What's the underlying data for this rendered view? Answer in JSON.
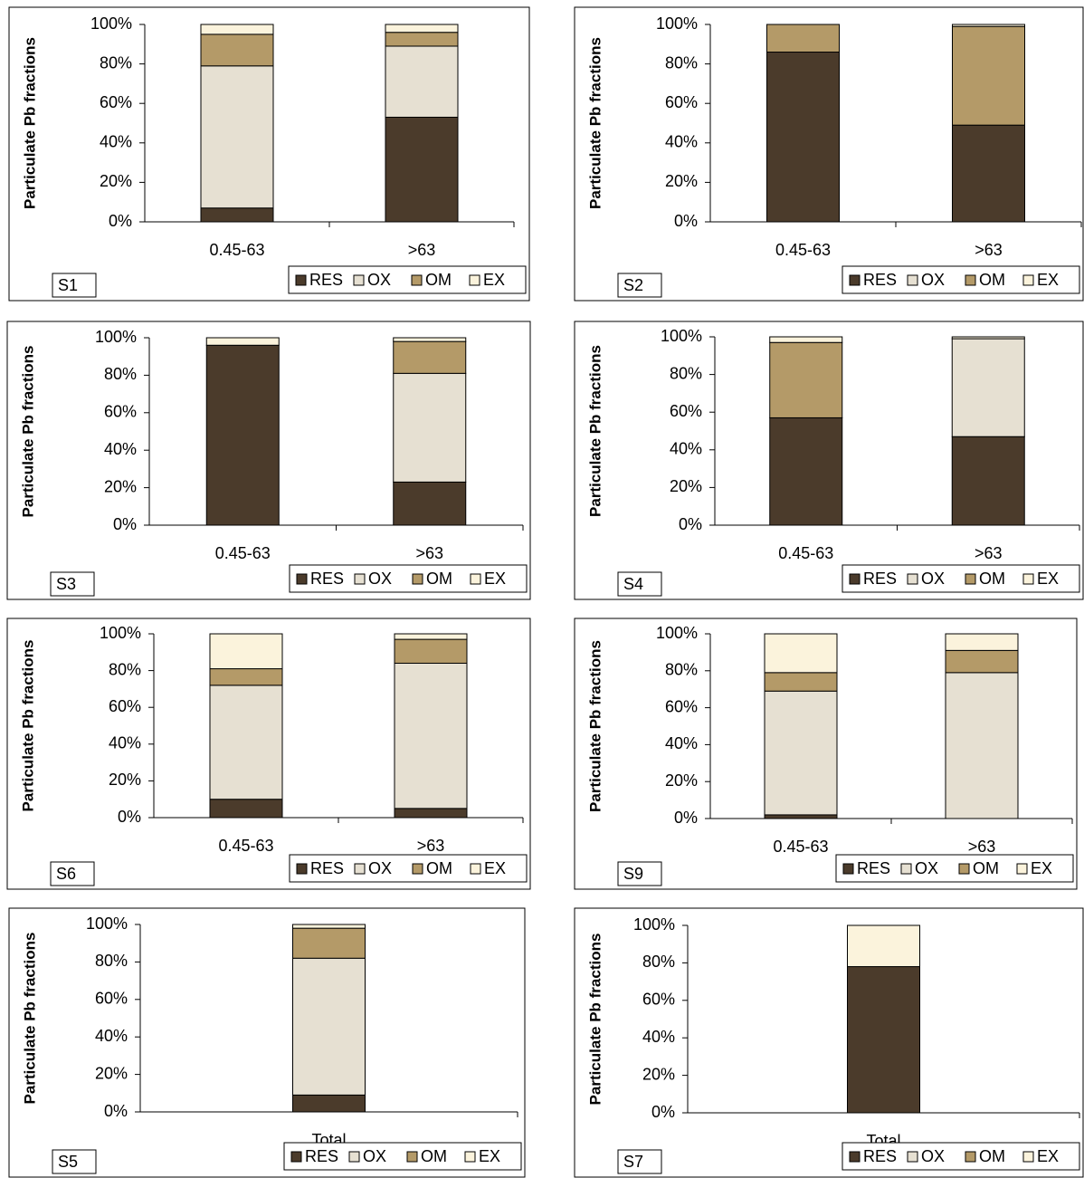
{
  "chart_data": [
    {
      "type": "bar",
      "stacked": true,
      "title": "S1",
      "ylabel": "Particulate Pb fractions",
      "categories": [
        "0.45-63",
        ">63"
      ],
      "series": [
        {
          "name": "RES",
          "color": "#4b3b2b",
          "values": [
            7,
            53
          ]
        },
        {
          "name": "OX",
          "color": "#e6e0d2",
          "values": [
            72,
            36
          ]
        },
        {
          "name": "OM",
          "color": "#b49a68",
          "values": [
            16,
            7
          ]
        },
        {
          "name": "EX",
          "color": "#fbf3dc",
          "values": [
            5,
            4
          ]
        }
      ],
      "ylim": [
        0,
        100
      ],
      "yticks": [
        {
          "value": 0,
          "label": "0%"
        },
        {
          "value": 20,
          "label": "20%"
        },
        {
          "value": 40,
          "label": "40%"
        },
        {
          "value": 60,
          "label": "60%"
        },
        {
          "value": 80,
          "label": "80%"
        },
        {
          "value": 100,
          "label": "100%"
        }
      ],
      "legend": "bottom-right"
    },
    {
      "type": "bar",
      "stacked": true,
      "title": "S2",
      "ylabel": "Particulate Pb fractions",
      "categories": [
        "0.45-63",
        ">63"
      ],
      "series": [
        {
          "name": "RES",
          "color": "#4b3b2b",
          "values": [
            86,
            49
          ]
        },
        {
          "name": "OX",
          "color": "#e6e0d2",
          "values": [
            0,
            0
          ]
        },
        {
          "name": "OM",
          "color": "#b49a68",
          "values": [
            14,
            50
          ]
        },
        {
          "name": "EX",
          "color": "#fbf3dc",
          "values": [
            0,
            1
          ]
        }
      ],
      "ylim": [
        0,
        100
      ],
      "yticks": [
        {
          "value": 0,
          "label": "0%"
        },
        {
          "value": 20,
          "label": "20%"
        },
        {
          "value": 40,
          "label": "40%"
        },
        {
          "value": 60,
          "label": "60%"
        },
        {
          "value": 80,
          "label": "80%"
        },
        {
          "value": 100,
          "label": "100%"
        }
      ],
      "legend": "bottom-right"
    },
    {
      "type": "bar",
      "stacked": true,
      "title": "S3",
      "ylabel": "Particulate Pb fractions",
      "categories": [
        "0.45-63",
        ">63"
      ],
      "series": [
        {
          "name": "RES",
          "color": "#4b3b2b",
          "values": [
            96,
            23
          ]
        },
        {
          "name": "OX",
          "color": "#e6e0d2",
          "values": [
            0,
            58
          ]
        },
        {
          "name": "OM",
          "color": "#b49a68",
          "values": [
            0,
            17
          ]
        },
        {
          "name": "EX",
          "color": "#fbf3dc",
          "values": [
            4,
            2
          ]
        }
      ],
      "ylim": [
        0,
        100
      ],
      "yticks": [
        {
          "value": 0,
          "label": "0%"
        },
        {
          "value": 20,
          "label": "20%"
        },
        {
          "value": 40,
          "label": "40%"
        },
        {
          "value": 60,
          "label": "60%"
        },
        {
          "value": 80,
          "label": "80%"
        },
        {
          "value": 100,
          "label": "100%"
        }
      ],
      "legend": "bottom-right"
    },
    {
      "type": "bar",
      "stacked": true,
      "title": "S4",
      "ylabel": "Particulate Pb fractions",
      "categories": [
        "0.45-63",
        ">63"
      ],
      "series": [
        {
          "name": "RES",
          "color": "#4b3b2b",
          "values": [
            57,
            47
          ]
        },
        {
          "name": "OX",
          "color": "#e6e0d2",
          "values": [
            0,
            52
          ]
        },
        {
          "name": "OM",
          "color": "#b49a68",
          "values": [
            40,
            0
          ]
        },
        {
          "name": "EX",
          "color": "#fbf3dc",
          "values": [
            3,
            1
          ]
        }
      ],
      "ylim": [
        0,
        100
      ],
      "yticks": [
        {
          "value": 0,
          "label": "0%"
        },
        {
          "value": 20,
          "label": "20%"
        },
        {
          "value": 40,
          "label": "40%"
        },
        {
          "value": 60,
          "label": "60%"
        },
        {
          "value": 80,
          "label": "80%"
        },
        {
          "value": 100,
          "label": "100%"
        }
      ],
      "legend": "bottom-right"
    },
    {
      "type": "bar",
      "stacked": true,
      "title": "S6",
      "ylabel": "Particulate Pb fractions",
      "categories": [
        "0.45-63",
        ">63"
      ],
      "series": [
        {
          "name": "RES",
          "color": "#4b3b2b",
          "values": [
            10,
            5
          ]
        },
        {
          "name": "OX",
          "color": "#e6e0d2",
          "values": [
            62,
            79
          ]
        },
        {
          "name": "OM",
          "color": "#b49a68",
          "values": [
            9,
            13
          ]
        },
        {
          "name": "EX",
          "color": "#fbf3dc",
          "values": [
            19,
            3
          ]
        }
      ],
      "ylim": [
        0,
        100
      ],
      "yticks": [
        {
          "value": 0,
          "label": "0%"
        },
        {
          "value": 20,
          "label": "20%"
        },
        {
          "value": 40,
          "label": "40%"
        },
        {
          "value": 60,
          "label": "60%"
        },
        {
          "value": 80,
          "label": "80%"
        },
        {
          "value": 100,
          "label": "100%"
        }
      ],
      "legend": "bottom-right"
    },
    {
      "type": "bar",
      "stacked": true,
      "title": "S9",
      "ylabel": "Particulate Pb fractions",
      "categories": [
        "0.45-63",
        ">63"
      ],
      "series": [
        {
          "name": "RES",
          "color": "#4b3b2b",
          "values": [
            2,
            0
          ]
        },
        {
          "name": "OX",
          "color": "#e6e0d2",
          "values": [
            67,
            79
          ]
        },
        {
          "name": "OM",
          "color": "#b49a68",
          "values": [
            10,
            12
          ]
        },
        {
          "name": "EX",
          "color": "#fbf3dc",
          "values": [
            21,
            9
          ]
        }
      ],
      "ylim": [
        0,
        100
      ],
      "yticks": [
        {
          "value": 0,
          "label": "0%"
        },
        {
          "value": 20,
          "label": "20%"
        },
        {
          "value": 40,
          "label": "40%"
        },
        {
          "value": 60,
          "label": "60%"
        },
        {
          "value": 80,
          "label": "80%"
        },
        {
          "value": 100,
          "label": "100%"
        }
      ],
      "legend": "bottom-right"
    },
    {
      "type": "bar",
      "stacked": true,
      "title": "S5",
      "ylabel": "Particulate Pb fractions",
      "categories": [
        "Total"
      ],
      "series": [
        {
          "name": "RES",
          "color": "#4b3b2b",
          "values": [
            9
          ]
        },
        {
          "name": "OX",
          "color": "#e6e0d2",
          "values": [
            73
          ]
        },
        {
          "name": "OM",
          "color": "#b49a68",
          "values": [
            16
          ]
        },
        {
          "name": "EX",
          "color": "#fbf3dc",
          "values": [
            2
          ]
        }
      ],
      "ylim": [
        0,
        100
      ],
      "yticks": [
        {
          "value": 0,
          "label": "0%"
        },
        {
          "value": 20,
          "label": "20%"
        },
        {
          "value": 40,
          "label": "40%"
        },
        {
          "value": 60,
          "label": "60%"
        },
        {
          "value": 80,
          "label": "80%"
        },
        {
          "value": 100,
          "label": "100%"
        }
      ],
      "legend": "bottom-right"
    },
    {
      "type": "bar",
      "stacked": true,
      "title": "S7",
      "ylabel": "Particulate Pb fractions",
      "categories": [
        "Total"
      ],
      "series": [
        {
          "name": "RES",
          "color": "#4b3b2b",
          "values": [
            78
          ]
        },
        {
          "name": "OX",
          "color": "#e6e0d2",
          "values": [
            0
          ]
        },
        {
          "name": "OM",
          "color": "#b49a68",
          "values": [
            0
          ]
        },
        {
          "name": "EX",
          "color": "#fbf3dc",
          "values": [
            22
          ]
        }
      ],
      "ylim": [
        0,
        100
      ],
      "yticks": [
        {
          "value": 0,
          "label": "0%"
        },
        {
          "value": 20,
          "label": "20%"
        },
        {
          "value": 40,
          "label": "40%"
        },
        {
          "value": 60,
          "label": "60%"
        },
        {
          "value": 80,
          "label": "80%"
        },
        {
          "value": 100,
          "label": "100%"
        }
      ],
      "legend": "bottom-right"
    }
  ]
}
